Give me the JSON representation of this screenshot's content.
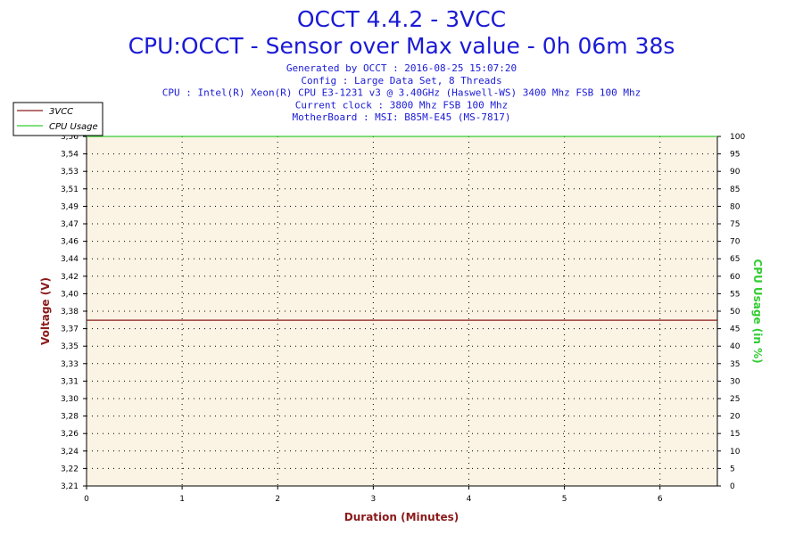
{
  "chart_data": {
    "type": "line",
    "title": "OCCT 4.4.2 - 3VCC",
    "subtitle": "CPU:OCCT - Sensor over Max value - 0h 06m 38s",
    "info_lines": [
      "Generated by OCCT : 2016-08-25 15:07:20",
      "Config : Large Data Set, 8 Threads",
      "CPU : Intel(R) Xeon(R) CPU E3-1231 v3 @ 3.40GHz (Haswell-WS) 3400 Mhz FSB 100 Mhz",
      "Current clock : 3800 Mhz FSB 100 Mhz",
      "MotherBoard : MSI: B85M-E45 (MS-7817)"
    ],
    "xlabel": "Duration (Minutes)",
    "ylabel_left": "Voltage (V)",
    "ylabel_right": "CPU Usage (in %)",
    "xlim": [
      0,
      6.6
    ],
    "x_ticks": [
      "0",
      "1",
      "2",
      "3",
      "4",
      "5",
      "6"
    ],
    "ylim_left": [
      3.21,
      3.56
    ],
    "y_left_ticks": [
      "3,21",
      "3,22",
      "3,24",
      "3,26",
      "3,28",
      "3,30",
      "3,31",
      "3,33",
      "3,35",
      "3,37",
      "3,38",
      "3,40",
      "3,42",
      "3,44",
      "3,46",
      "3,47",
      "3,49",
      "3,51",
      "3,53",
      "3,54",
      "3,56"
    ],
    "ylim_right": [
      0,
      100
    ],
    "y_right_ticks": [
      "0",
      "5",
      "10",
      "15",
      "20",
      "25",
      "30",
      "35",
      "40",
      "45",
      "50",
      "55",
      "60",
      "65",
      "70",
      "75",
      "80",
      "85",
      "90",
      "95",
      "100"
    ],
    "grid": true,
    "legend_position": "top-left",
    "series": [
      {
        "name": "3VCC",
        "axis": "left",
        "color": "#8b1a1a",
        "x": [
          0,
          6.6
        ],
        "y": [
          3.376,
          3.376
        ]
      },
      {
        "name": "CPU Usage",
        "axis": "right",
        "color": "#33cc33",
        "x": [
          0,
          6.6
        ],
        "y": [
          100,
          100
        ]
      }
    ],
    "colors": {
      "title": "#1a1ad6",
      "plot_background": "#fbf3e4",
      "xlabel": "#8b1a1a",
      "ylabel_left": "#8b1a1a",
      "ylabel_right": "#33cc33"
    }
  }
}
